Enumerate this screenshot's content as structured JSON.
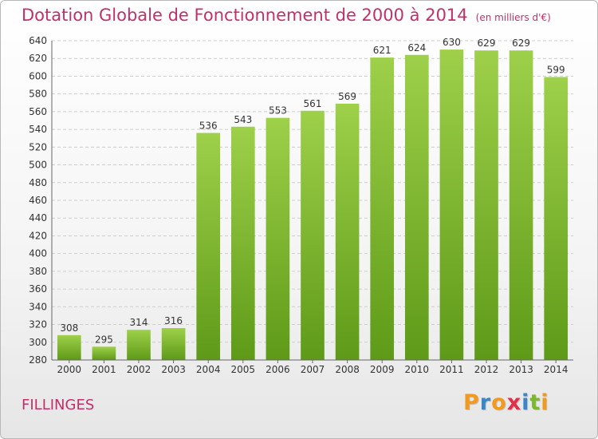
{
  "chart_data": {
    "type": "bar",
    "title": "Dotation Globale de Fonctionnement de 2000 à 2014",
    "unit": "(en milliers d'€)",
    "xlabel": "",
    "ylabel": "",
    "categories": [
      "2000",
      "2001",
      "2002",
      "2003",
      "2004",
      "2005",
      "2006",
      "2007",
      "2008",
      "2009",
      "2010",
      "2011",
      "2012",
      "2013",
      "2014"
    ],
    "values": [
      308,
      295,
      314,
      316,
      536,
      543,
      553,
      561,
      569,
      621,
      624,
      630,
      629,
      629,
      599
    ],
    "ylim": [
      280,
      640
    ],
    "ytick_step": 20,
    "grid": true,
    "legend": "none",
    "bar_color_top": "#9ed04a",
    "bar_color_bottom": "#5e9a18"
  },
  "location_label": "FILLINGES",
  "brand": {
    "letters": [
      "P",
      "r",
      "o",
      "x",
      "i",
      "t",
      "i"
    ],
    "colors": [
      "#f29a1e",
      "#3a86c8",
      "#f29a1e",
      "#e2304a",
      "#3a86c8",
      "#7bb82c",
      "#f29a1e"
    ]
  }
}
